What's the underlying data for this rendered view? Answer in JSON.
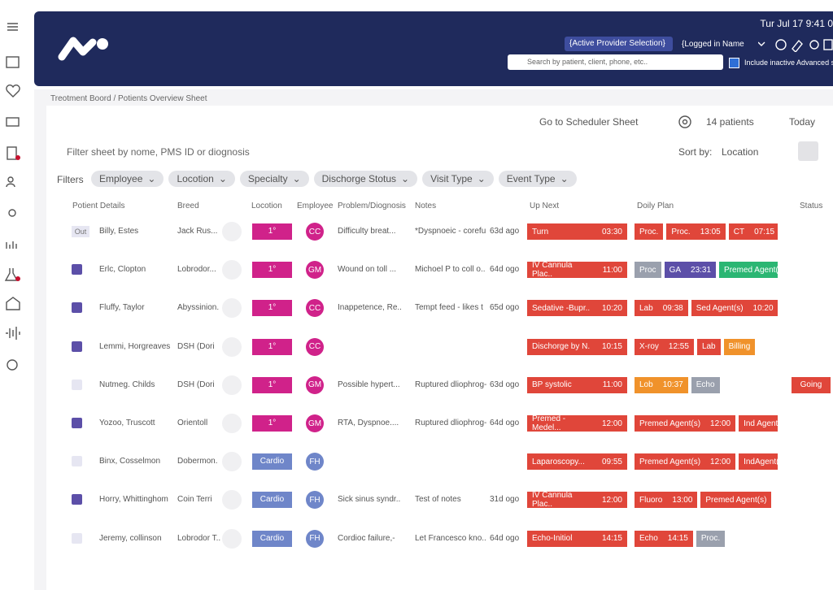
{
  "header": {
    "datetime": "Tur Jul 17 9:41 0",
    "provider": "{Active Provider Selection}",
    "logged_in": "{Logged in Name",
    "search_placeholder": "Search by patient, client, phone, etc..",
    "include_inactive": "Include inactive Advanced s"
  },
  "breadcrumb": "Treotment Boord / Potients Overview Sheet",
  "toolbar": {
    "scheduler": "Go to Scheduler Sheet",
    "patients": "14 patients",
    "today": "Today"
  },
  "filter_placeholder": "Filter sheet by nome, PMS ID or diognosis",
  "sort": {
    "label": "Sort by:",
    "value": "Location"
  },
  "filters": {
    "label": "Filters",
    "chips": [
      "Employee",
      "Locotion",
      "Specialty",
      "Dischorge Stotus",
      "Visit Type",
      "Event Type"
    ]
  },
  "table": {
    "columns": [
      "Potient Details",
      "Breed",
      "Locotion",
      "Employee",
      "Problem/Diognosis",
      "Notes",
      "Up Next",
      "Doily Plan",
      "Status"
    ],
    "rows": [
      {
        "badge": "Out",
        "check": "#e6e6f2",
        "patient": "Billy, Estes",
        "breed": "Jack Rus...",
        "location": "1°",
        "location_color": "#d0228a",
        "employee": "CC",
        "problem": "Difficulty breat...",
        "notes": "*Dyspnoeic - corefu..",
        "age": "63d ago",
        "up_next": {
          "label": "Turn",
          "time": "03:30"
        },
        "plan": [
          {
            "label": "Proc.",
            "color": "#e0463a"
          },
          {
            "label": "Proc.",
            "time": "13:05",
            "color": "#e0463a"
          },
          {
            "label": "CT",
            "time": "07:15",
            "color": "#e0463a"
          }
        ]
      },
      {
        "check": "#5c4fa8",
        "patient": "Erlc, Clopton",
        "breed": "Lobrodor...",
        "location": "1°",
        "location_color": "#d0228a",
        "employee": "GM",
        "problem": "Wound on toll ...",
        "notes": "Michoel P to coll o..",
        "age": "64d ogo",
        "up_next": {
          "label": "IV Cannula Plac..",
          "time": "11:00"
        },
        "plan": [
          {
            "label": "Proc",
            "color": "#9aa0ad"
          },
          {
            "label": "GA",
            "time": "23:31",
            "color": "#5c4fa8"
          },
          {
            "label": "Premed Agent(s",
            "color": "#2bb673"
          }
        ]
      },
      {
        "check": "#5c4fa8",
        "patient": "Fluffy, Taylor",
        "breed": "Abyssinion.",
        "location": "1°",
        "location_color": "#d0228a",
        "employee": "CC",
        "problem": "Inappetence, Re..",
        "notes": "Tempt feed - likes t",
        "age": "65d ogo",
        "up_next": {
          "label": "Sedative -Bupr..",
          "time": "10:20"
        },
        "plan": [
          {
            "label": "Lab",
            "time": "09:38",
            "color": "#e0463a"
          },
          {
            "label": "Sed Agent(s)",
            "time": "10:20",
            "color": "#e0463a"
          }
        ]
      },
      {
        "check": "#5c4fa8",
        "patient": "Lemmi, Horgreaves",
        "breed": "DSH (Dori",
        "location": "1°",
        "location_color": "#d0228a",
        "employee": "CC",
        "up_next": {
          "label": "Dischorge by N.",
          "time": "10:15"
        },
        "plan": [
          {
            "label": "X-roy",
            "time": "12:55",
            "color": "#e0463a"
          },
          {
            "label": "Lab",
            "color": "#e0463a"
          },
          {
            "label": "Billing",
            "color": "#f0922b"
          }
        ]
      },
      {
        "check": "#e6e6f2",
        "patient": "Nutmeg. Childs",
        "breed": "DSH (Dori",
        "location": "1°",
        "location_color": "#d0228a",
        "employee": "GM",
        "problem": "Possible hypert...",
        "notes": "Ruptured dliophrog-",
        "age": "63d ogo",
        "up_next": {
          "label": "BP systolic",
          "time": "11:00"
        },
        "plan": [
          {
            "label": "Lob",
            "time": "10:37",
            "color": "#f0922b"
          },
          {
            "label": "Echo",
            "color": "#9aa0ad"
          }
        ],
        "status": "Going"
      },
      {
        "check": "#5c4fa8",
        "patient": "Yozoo, Truscott",
        "breed": "Orientoll",
        "location": "1°",
        "location_color": "#d0228a",
        "employee": "GM",
        "problem": "RTA, Dyspnoe....",
        "notes": "Ruptured dliophrog-..",
        "age": "64d ogo",
        "up_next": {
          "label": "Premed - Medel...",
          "time": "12:00"
        },
        "plan": [
          {
            "label": "Premed Agent(s)",
            "time": "12:00",
            "color": "#e0463a"
          },
          {
            "label": "Ind Agent(",
            "color": "#e0463a"
          }
        ]
      },
      {
        "check": "#e6e6f2",
        "patient": "Binx, Cosselmon",
        "breed": "Dobermon.",
        "location": "Cardio",
        "location_color": "#6f86c9",
        "employee": "FH",
        "up_next": {
          "label": "Laparoscopy...",
          "time": "09:55"
        },
        "plan": [
          {
            "label": "Premed Agent(s)",
            "time": "12:00",
            "color": "#e0463a"
          },
          {
            "label": "IndAgent(",
            "color": "#e0463a"
          }
        ]
      },
      {
        "check": "#5c4fa8",
        "patient": "Horry, Whittinghom",
        "breed": "Coin Terri",
        "location": "Cardio",
        "location_color": "#6f86c9",
        "employee": "FH",
        "problem": "Sick sinus syndr..",
        "notes": "Test of notes",
        "age": "31d ogo",
        "up_next": {
          "label": "IV Cannula Plac..",
          "time": "12:00"
        },
        "plan": [
          {
            "label": "Fluoro",
            "time": "13:00",
            "color": "#e0463a"
          },
          {
            "label": "Premed Agent(s)",
            "color": "#e0463a"
          }
        ]
      },
      {
        "check": "#e6e6f2",
        "patient": "Jeremy, collinson",
        "breed": "Lobrodor T..",
        "location": "Cardio",
        "location_color": "#6f86c9",
        "employee": "FH",
        "problem": "Cordioc failure,-",
        "notes": "Let Francesco kno..",
        "age": "64d ogo",
        "up_next": {
          "label": "Echo-Initiol",
          "time": "14:15"
        },
        "plan": [
          {
            "label": "Echo",
            "time": "14:15",
            "color": "#e0463a"
          },
          {
            "label": "Proc.",
            "color": "#9aa0ad"
          }
        ]
      }
    ]
  }
}
